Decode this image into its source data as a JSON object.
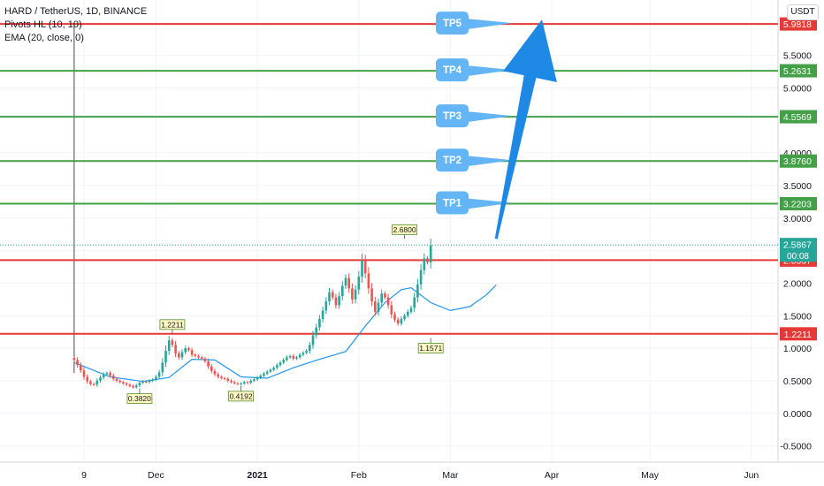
{
  "legend": {
    "symbol": "HARD / TetherUS, 1D, BINANCE",
    "pivots": "Pivots HL (10, 10)",
    "ema": "EMA (20, close, 0)"
  },
  "unit": "USDT",
  "colors": {
    "up": "#26a69a",
    "down": "#ef5350",
    "ema": "#2196f3",
    "support": "#e53935",
    "target": "#43a047",
    "tp_box": "#64b5f6",
    "arrow": "#1e88e5",
    "last_price": "#26a69a"
  },
  "chart_data": {
    "type": "candlestick",
    "y_axis": {
      "range": [
        -0.75,
        6.35
      ],
      "ticks": [
        "5.5000",
        "5.0000",
        "4.0000",
        "3.5000",
        "3.0000",
        "2.5000",
        "2.0000",
        "1.5000",
        "1.0000",
        "0.5000",
        "0.0000",
        "-0.5000"
      ]
    },
    "x_axis": {
      "ticks": [
        {
          "label": "9",
          "day": 0
        },
        {
          "label": "Dec",
          "day": 22
        },
        {
          "label": "2021",
          "day": 53
        },
        {
          "label": "Feb",
          "day": 84
        },
        {
          "label": "Mar",
          "day": 112
        },
        {
          "label": "Apr",
          "day": 143
        },
        {
          "label": "May",
          "day": 173
        },
        {
          "label": "Jun",
          "day": 204
        }
      ]
    },
    "key_levels": [
      {
        "value": 5.9818,
        "label": "5.9818",
        "kind": "resistance"
      },
      {
        "value": 5.2631,
        "label": "5.2631",
        "kind": "target"
      },
      {
        "value": 4.5569,
        "label": "4.5569",
        "kind": "target"
      },
      {
        "value": 3.876,
        "label": "3.8760",
        "kind": "target"
      },
      {
        "value": 3.2203,
        "label": "3.2203",
        "kind": "target"
      },
      {
        "value": 2.3537,
        "label": "2.3537",
        "kind": "resistance"
      },
      {
        "value": 1.2211,
        "label": "1.2211",
        "kind": "resistance"
      }
    ],
    "targets": [
      {
        "label": "TP5",
        "value": 5.9818
      },
      {
        "label": "TP4",
        "value": 5.2631
      },
      {
        "label": "TP3",
        "value": 4.5569
      },
      {
        "label": "TP2",
        "value": 3.876
      },
      {
        "label": "TP1",
        "value": 3.2203
      }
    ],
    "last_price": {
      "value": 2.5867,
      "label": "2.5867",
      "countdown": "00:08"
    },
    "pivots": [
      {
        "label": "1.2211",
        "day": 27,
        "value": 1.2211,
        "type": "high"
      },
      {
        "label": "2.6800",
        "day": 98,
        "value": 2.68,
        "type": "high"
      },
      {
        "label": "0.3820",
        "day": 17,
        "value": 0.382,
        "type": "low"
      },
      {
        "label": "0.4192",
        "day": 48,
        "value": 0.4192,
        "type": "low"
      },
      {
        "label": "1.1571",
        "day": 106,
        "value": 1.1571,
        "type": "low"
      }
    ],
    "first_day": -3,
    "closes": [
      0.82,
      0.74,
      0.66,
      0.56,
      0.49,
      0.45,
      0.44,
      0.5,
      0.55,
      0.6,
      0.62,
      0.58,
      0.53,
      0.5,
      0.48,
      0.46,
      0.44,
      0.42,
      0.4,
      0.43,
      0.47,
      0.49,
      0.48,
      0.5,
      0.52,
      0.56,
      0.63,
      0.78,
      0.96,
      1.12,
      1.05,
      0.92,
      0.86,
      0.94,
      1.0,
      0.97,
      0.9,
      0.88,
      0.86,
      0.84,
      0.8,
      0.72,
      0.65,
      0.6,
      0.56,
      0.54,
      0.53,
      0.5,
      0.48,
      0.46,
      0.45,
      0.46,
      0.48,
      0.47,
      0.5,
      0.52,
      0.55,
      0.58,
      0.61,
      0.64,
      0.67,
      0.7,
      0.74,
      0.78,
      0.82,
      0.86,
      0.88,
      0.84,
      0.86,
      0.9,
      0.93,
      0.96,
      1.05,
      1.2,
      1.32,
      1.45,
      1.58,
      1.72,
      1.86,
      1.78,
      1.66,
      1.8,
      1.96,
      2.08,
      1.92,
      1.75,
      1.9,
      2.1,
      2.35,
      2.15,
      1.92,
      1.72,
      1.56,
      1.7,
      1.84,
      1.78,
      1.66,
      1.52,
      1.44,
      1.38,
      1.45,
      1.5,
      1.56,
      1.62,
      1.78,
      1.98,
      2.2,
      2.38,
      2.32,
      2.58
    ],
    "ema": [
      {
        "day": -3,
        "value": 0.78
      },
      {
        "day": 8,
        "value": 0.56
      },
      {
        "day": 18,
        "value": 0.49
      },
      {
        "day": 26,
        "value": 0.55
      },
      {
        "day": 33,
        "value": 0.83
      },
      {
        "day": 40,
        "value": 0.82
      },
      {
        "day": 48,
        "value": 0.56
      },
      {
        "day": 56,
        "value": 0.54
      },
      {
        "day": 64,
        "value": 0.7
      },
      {
        "day": 72,
        "value": 0.83
      },
      {
        "day": 80,
        "value": 0.95
      },
      {
        "day": 86,
        "value": 1.34
      },
      {
        "day": 92,
        "value": 1.7
      },
      {
        "day": 97,
        "value": 1.9
      },
      {
        "day": 100,
        "value": 1.93
      },
      {
        "day": 106,
        "value": 1.7
      },
      {
        "day": 112,
        "value": 1.58
      },
      {
        "day": 118,
        "value": 1.64
      },
      {
        "day": 123,
        "value": 1.82
      },
      {
        "day": 126,
        "value": 1.97
      }
    ],
    "forecast_arrow": {
      "from_day": 126,
      "from_value": 2.68,
      "to_day": 140,
      "to_value": 6.05
    }
  }
}
